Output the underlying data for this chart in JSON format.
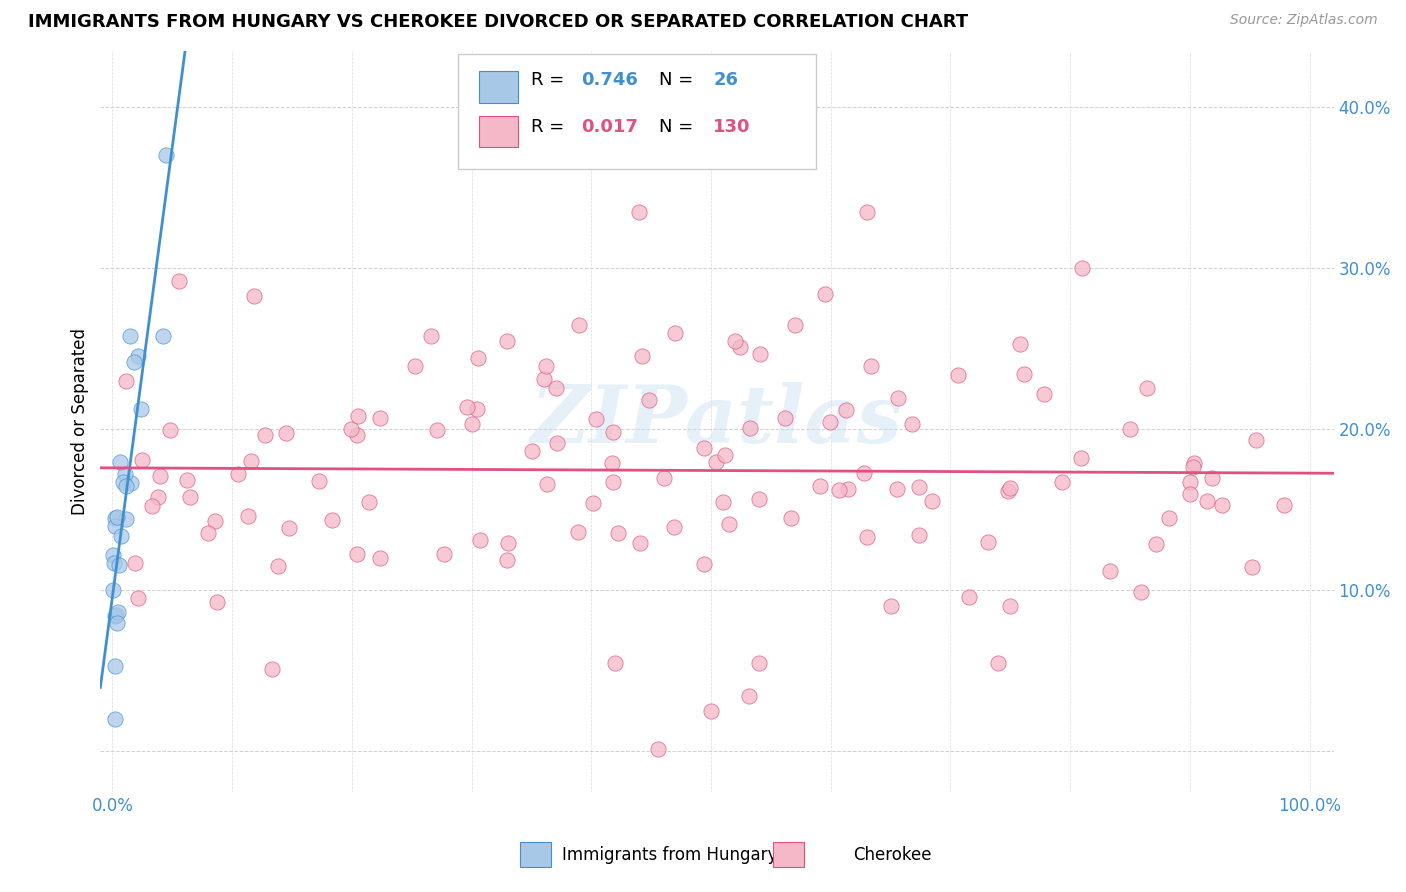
{
  "title": "IMMIGRANTS FROM HUNGARY VS CHEROKEE DIVORCED OR SEPARATED CORRELATION CHART",
  "source": "Source: ZipAtlas.com",
  "ylabel": "Divorced or Separated",
  "color_blue": "#a8c8e8",
  "color_pink": "#f4b8c8",
  "color_blue_line": "#4090d0",
  "color_pink_line": "#e05080",
  "color_blue_dark": "#4090d0",
  "color_pink_dark": "#e05080",
  "color_axis_label": "#4090d0",
  "watermark_text": "ZIPatlas",
  "N_blue": 26,
  "N_pink": 130,
  "R_blue": 0.746,
  "R_pink": 0.017,
  "xlim": [
    -0.01,
    1.02
  ],
  "ylim": [
    -0.025,
    0.435
  ],
  "ytick_vals": [
    0.0,
    0.1,
    0.2,
    0.3,
    0.4
  ],
  "ytick_labels": [
    "",
    "10.0%",
    "20.0%",
    "30.0%",
    "40.0%"
  ],
  "xtick_vals": [
    0.0,
    1.0
  ],
  "xtick_labels": [
    "0.0%",
    "100.0%"
  ]
}
